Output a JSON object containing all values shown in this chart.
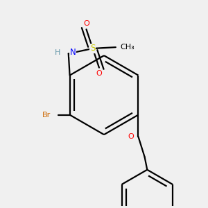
{
  "background_color": "#f0f0f0",
  "bond_color": "#000000",
  "atom_colors": {
    "N": "#0000ff",
    "O": "#ff0000",
    "S": "#cccc00",
    "Br": "#cc6600",
    "C": "#000000",
    "H": "#6699aa"
  },
  "figsize": [
    3.0,
    3.0
  ],
  "dpi": 100,
  "lw": 1.6,
  "font_size": 8.5
}
